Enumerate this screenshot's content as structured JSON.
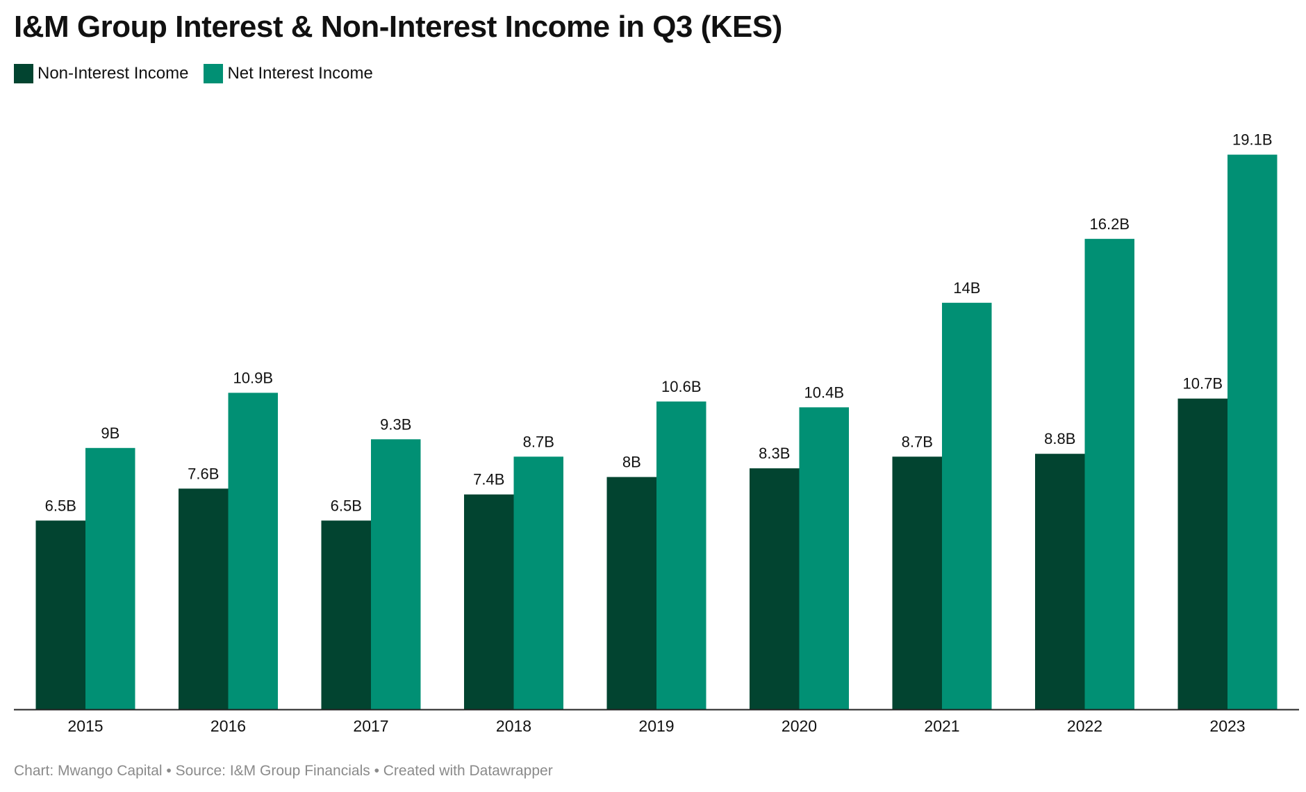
{
  "title": "I&M Group Interest & Non-Interest Income in Q3 (KES)",
  "footer": "Chart: Mwango Capital • Source: I&M Group Financials • Created with Datawrapper",
  "colors": {
    "non_interest": "#024430",
    "net_interest": "#019074",
    "axis": "#222222"
  },
  "chart_data": {
    "type": "bar",
    "title": "I&M Group Interest & Non-Interest Income in Q3 (KES)",
    "xlabel": "",
    "ylabel": "",
    "ylim": [
      0,
      20.5
    ],
    "grid": false,
    "legend_position": "top-left",
    "categories": [
      "2015",
      "2016",
      "2017",
      "2018",
      "2019",
      "2020",
      "2021",
      "2022",
      "2023"
    ],
    "series": [
      {
        "name": "Non-Interest Income",
        "color": "#024430",
        "values": [
          6.5,
          7.6,
          6.5,
          7.4,
          8.0,
          8.3,
          8.7,
          8.8,
          10.7
        ],
        "labels": [
          "6.5B",
          "7.6B",
          "6.5B",
          "7.4B",
          "8B",
          "8.3B",
          "8.7B",
          "8.8B",
          "10.7B"
        ]
      },
      {
        "name": "Net Interest Income",
        "color": "#019074",
        "values": [
          9.0,
          10.9,
          9.3,
          8.7,
          10.6,
          10.4,
          14.0,
          16.2,
          19.1
        ],
        "labels": [
          "9B",
          "10.9B",
          "9.3B",
          "8.7B",
          "10.6B",
          "10.4B",
          "14B",
          "16.2B",
          "19.1B"
        ]
      }
    ]
  }
}
